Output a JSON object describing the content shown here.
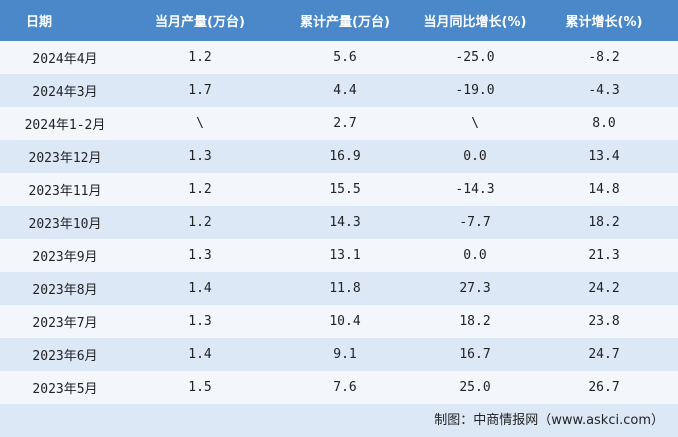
{
  "table": {
    "header": [
      "日期",
      "当月产量(万台)",
      "累计产量(万台)",
      "当月同比增长(%)",
      "累计增长(%)"
    ],
    "rows": [
      [
        "2024年4月",
        "1.2",
        "5.6",
        "-25.0",
        "-8.2"
      ],
      [
        "2024年3月",
        "1.7",
        "4.4",
        "-19.0",
        "-4.3"
      ],
      [
        "2024年1-2月",
        "\\",
        "2.7",
        "\\",
        "8.0"
      ],
      [
        "2023年12月",
        "1.3",
        "16.9",
        "0.0",
        "13.4"
      ],
      [
        "2023年11月",
        "1.2",
        "15.5",
        "-14.3",
        "14.8"
      ],
      [
        "2023年10月",
        "1.2",
        "14.3",
        "-7.7",
        "18.2"
      ],
      [
        "2023年9月",
        "1.3",
        "13.1",
        "0.0",
        "21.3"
      ],
      [
        "2023年8月",
        "1.4",
        "11.8",
        "27.3",
        "24.2"
      ],
      [
        "2023年7月",
        "1.3",
        "10.4",
        "18.2",
        "23.8"
      ],
      [
        "2023年6月",
        "1.4",
        "9.1",
        "16.7",
        "24.7"
      ],
      [
        "2023年5月",
        "1.5",
        "7.6",
        "25.0",
        "26.7"
      ]
    ]
  },
  "footer": "制图：中商情报网（www.askci.com）"
}
